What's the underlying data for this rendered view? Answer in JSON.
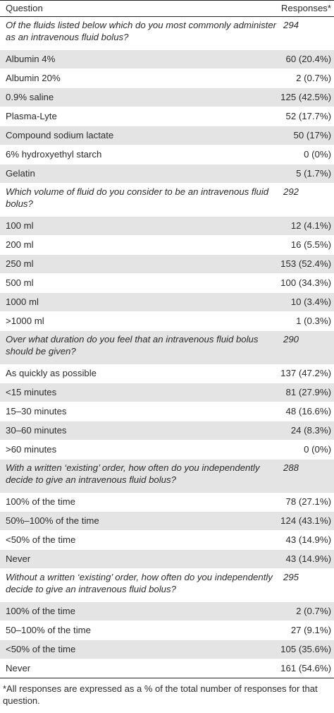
{
  "header": {
    "question": "Question",
    "responses": "Responses*"
  },
  "groups": [
    {
      "question": "Of the fluids listed below which do you most commonly administer as an intravenous fluid bolus?",
      "total": "294",
      "options": [
        {
          "label": "Albumin 4%",
          "value": "60 (20.4%)"
        },
        {
          "label": "Albumin 20%",
          "value": "2 (0.7%)"
        },
        {
          "label": "0.9% saline",
          "value": "125 (42.5%)"
        },
        {
          "label": "Plasma-Lyte",
          "value": "52 (17.7%)"
        },
        {
          "label": "Compound sodium lactate",
          "value": "50 (17%)"
        },
        {
          "label": "6% hydroxyethyl starch",
          "value": "0 (0%)"
        },
        {
          "label": "Gelatin",
          "value": "5 (1.7%)"
        }
      ]
    },
    {
      "question": "Which volume of fluid do you consider to be an intravenous fluid bolus?",
      "total": "292",
      "options": [
        {
          "label": "100 ml",
          "value": "12 (4.1%)"
        },
        {
          "label": "200 ml",
          "value": "16 (5.5%)"
        },
        {
          "label": "250 ml",
          "value": "153 (52.4%)"
        },
        {
          "label": "500 ml",
          "value": "100 (34.3%)"
        },
        {
          "label": "1000 ml",
          "value": "10 (3.4%)"
        },
        {
          "label": ">1000 ml",
          "value": "1 (0.3%)"
        }
      ]
    },
    {
      "question": "Over what duration do you feel that an intravenous fluid bolus should be given?",
      "total": "290",
      "options": [
        {
          "label": "As quickly as possible",
          "value": "137 (47.2%)"
        },
        {
          "label": "<15 minutes",
          "value": "81 (27.9%)"
        },
        {
          "label": "15–30 minutes",
          "value": "48 (16.6%)"
        },
        {
          "label": "30–60 minutes",
          "value": "24 (8.3%)"
        },
        {
          "label": ">60 minutes",
          "value": "0 (0%)"
        }
      ]
    },
    {
      "question": "With a written ‘existing’ order, how often do you independently decide to give an intravenous fluid bolus?",
      "total": "288",
      "options": [
        {
          "label": "100% of the time",
          "value": "78 (27.1%)"
        },
        {
          "label": "50%–100% of the time",
          "value": "124 (43.1%)"
        },
        {
          "label": "<50% of the time",
          "value": "43 (14.9%)"
        },
        {
          "label": "Never",
          "value": "43 (14.9%)"
        }
      ]
    },
    {
      "question": "Without a written ‘existing’ order, how often do you independently decide to give an intravenous fluid bolus?",
      "total": "295",
      "options": [
        {
          "label": "100% of the time",
          "value": "2 (0.7%)"
        },
        {
          "label": "50–100% of the time",
          "value": "27 (9.1%)"
        },
        {
          "label": "<50% of the time",
          "value": "105 (35.6%)"
        },
        {
          "label": "Never",
          "value": "161 (54.6%)"
        }
      ]
    }
  ],
  "footnote": "*All responses are expressed as a % of the total number of responses for that question."
}
